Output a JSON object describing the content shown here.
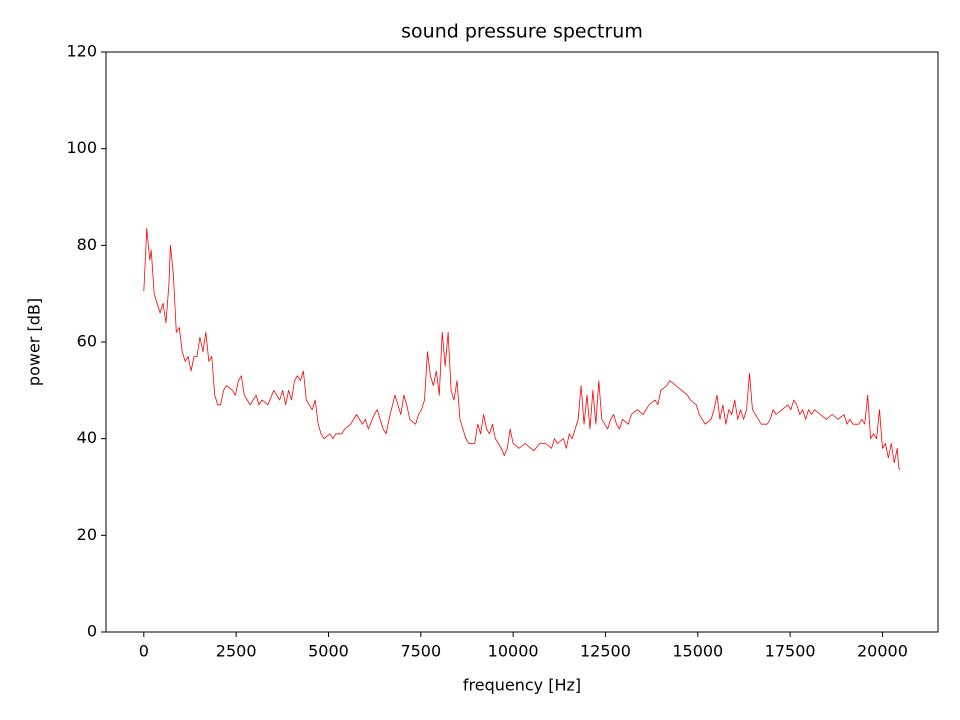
{
  "chart_data": {
    "type": "line",
    "title": "sound pressure spectrum",
    "x_label": "frequency [Hz]",
    "y_label": "power [dB]",
    "x": [
      0,
      80,
      160,
      200,
      280,
      360,
      440,
      520,
      600,
      680,
      720,
      800,
      880,
      960,
      1040,
      1120,
      1200,
      1280,
      1360,
      1440,
      1520,
      1600,
      1680,
      1760,
      1840,
      1920,
      2000,
      2080,
      2160,
      2240,
      2400,
      2480,
      2560,
      2640,
      2720,
      2800,
      2880,
      3040,
      3120,
      3200,
      3360,
      3520,
      3600,
      3680,
      3760,
      3840,
      3920,
      4000,
      4080,
      4160,
      4240,
      4320,
      4400,
      4480,
      4560,
      4640,
      4720,
      4800,
      4880,
      5040,
      5120,
      5200,
      5360,
      5440,
      5600,
      5760,
      5920,
      6000,
      6080,
      6240,
      6320,
      6400,
      6480,
      6560,
      6640,
      6800,
      6880,
      6960,
      7040,
      7120,
      7200,
      7360,
      7440,
      7520,
      7600,
      7680,
      7760,
      7840,
      7920,
      8000,
      8080,
      8160,
      8240,
      8320,
      8400,
      8480,
      8560,
      8640,
      8720,
      8800,
      8960,
      9040,
      9120,
      9200,
      9280,
      9360,
      9440,
      9520,
      9600,
      9680,
      9760,
      9840,
      9920,
      10000,
      10160,
      10320,
      10480,
      10560,
      10720,
      10880,
      11040,
      11120,
      11200,
      11360,
      11440,
      11520,
      11600,
      11680,
      11760,
      11840,
      11920,
      12000,
      12080,
      12160,
      12240,
      12320,
      12400,
      12480,
      12560,
      12640,
      12720,
      12800,
      12880,
      12960,
      13120,
      13200,
      13360,
      13520,
      13680,
      13840,
      13920,
      14000,
      14160,
      14240,
      14400,
      14560,
      14720,
      14800,
      14960,
      15040,
      15120,
      15200,
      15360,
      15440,
      15520,
      15600,
      15680,
      15760,
      15840,
      15920,
      16000,
      16080,
      16160,
      16240,
      16320,
      16400,
      16480,
      16560,
      16640,
      16720,
      16880,
      16960,
      17040,
      17120,
      17280,
      17440,
      17520,
      17600,
      17680,
      17760,
      17840,
      17920,
      18000,
      18080,
      18160,
      18320,
      18480,
      18640,
      18800,
      18960,
      19040,
      19120,
      19200,
      19360,
      19440,
      19520,
      19600,
      19680,
      19760,
      19840,
      19920,
      20000,
      20080,
      20160,
      20240,
      20320,
      20400,
      20440,
      20480
    ],
    "series": [
      {
        "color": "#ff0000",
        "values": [
          70.5,
          83.5,
          77,
          79,
          70,
          68,
          66,
          68,
          64,
          72,
          80,
          74,
          62,
          63,
          58,
          56,
          57,
          54,
          57,
          57,
          61,
          58,
          62,
          56,
          57,
          49,
          47,
          47,
          50,
          51,
          50,
          49,
          52,
          53,
          49,
          48,
          47,
          49,
          47,
          48,
          47,
          50,
          49,
          48,
          50,
          47,
          50,
          48,
          52,
          53,
          52,
          54,
          48,
          47,
          46,
          48,
          43,
          41,
          40,
          41,
          40,
          41,
          41,
          42,
          43,
          45,
          43,
          44,
          42,
          45,
          46,
          44,
          42,
          41,
          44,
          49,
          47,
          45,
          49,
          47,
          44,
          43,
          45,
          46,
          48,
          58,
          53,
          51,
          54,
          49,
          62,
          55,
          62,
          50,
          48,
          52,
          44,
          42,
          40,
          39,
          39,
          43,
          41,
          45,
          42,
          41,
          43,
          40,
          39,
          38,
          36.5,
          38,
          42,
          39,
          38,
          39,
          38,
          37.5,
          39,
          39,
          38,
          40,
          39,
          40,
          38,
          41,
          40,
          42,
          44,
          51,
          43,
          49,
          42,
          50,
          43,
          52,
          44,
          43,
          42,
          44,
          45,
          43,
          42,
          44,
          43,
          45,
          46,
          45,
          47,
          48,
          47,
          50,
          51,
          52,
          51,
          50,
          49,
          48,
          47,
          45,
          44,
          43,
          44,
          46,
          49,
          44,
          47,
          43,
          46,
          45,
          48,
          44,
          46,
          44,
          46,
          53.5,
          46,
          45,
          44,
          43,
          43,
          44,
          46,
          45,
          46,
          47,
          46,
          48,
          47,
          45,
          46,
          44,
          46,
          45,
          46,
          45,
          44,
          45,
          44,
          45,
          43,
          44,
          43,
          43,
          44,
          43,
          49,
          40,
          41,
          40,
          46,
          38,
          39,
          36,
          39,
          35,
          38,
          34,
          33.5
        ]
      }
    ],
    "xlim": [
      -1024,
      21504
    ],
    "xticks": [
      0,
      2500,
      5000,
      7500,
      10000,
      12500,
      15000,
      17500,
      20000
    ],
    "ylim": [
      0,
      120
    ],
    "yticks": [
      0,
      20,
      40,
      60,
      80,
      100,
      120
    ]
  }
}
